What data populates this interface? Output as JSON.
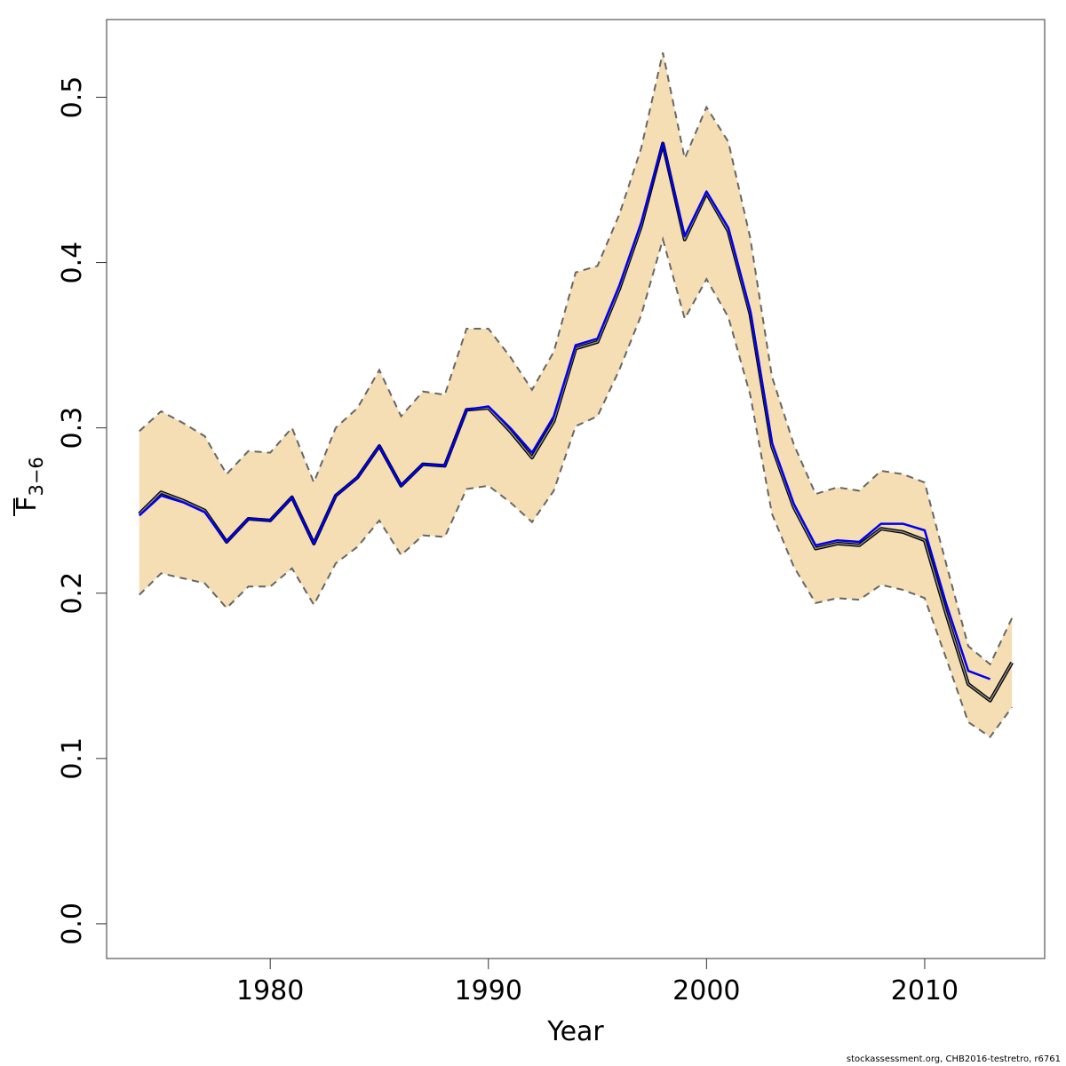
{
  "chart_data": {
    "type": "line",
    "xlabel": "Year",
    "ylabel_main": "F",
    "ylabel_sub": "3−6",
    "xlim": [
      1972.5,
      2015.5
    ],
    "ylim": [
      -0.021,
      0.547
    ],
    "xticks": [
      1980,
      1990,
      2000,
      2010
    ],
    "yticks": [
      0.0,
      0.1,
      0.2,
      0.3,
      0.4,
      0.5
    ],
    "ytick_labels": [
      "0.0",
      "0.1",
      "0.2",
      "0.3",
      "0.4",
      "0.5"
    ],
    "colors": {
      "band": "#f5deb3",
      "band_border": "#666666",
      "estimate": "#000000",
      "retro": "#0000ee"
    },
    "series": [
      {
        "role": "estimate",
        "x": [
          1974,
          1975,
          1976,
          1977,
          1978,
          1979,
          1980,
          1981,
          1982,
          1983,
          1984,
          1985,
          1986,
          1987,
          1988,
          1989,
          1990,
          1991,
          1992,
          1993,
          1994,
          1995,
          1996,
          1997,
          1998,
          1999,
          2000,
          2001,
          2002,
          2003,
          2004,
          2005,
          2006,
          2007,
          2008,
          2009,
          2010,
          2011,
          2012,
          2013,
          2014
        ],
        "y": [
          0.248,
          0.261,
          0.256,
          0.25,
          0.231,
          0.245,
          0.244,
          0.258,
          0.23,
          0.259,
          0.27,
          0.289,
          0.265,
          0.278,
          0.277,
          0.311,
          0.312,
          0.298,
          0.282,
          0.304,
          0.348,
          0.352,
          0.384,
          0.422,
          0.472,
          0.414,
          0.442,
          0.419,
          0.369,
          0.289,
          0.252,
          0.227,
          0.23,
          0.229,
          0.239,
          0.237,
          0.232,
          0.187,
          0.145,
          0.135,
          0.158
        ]
      },
      {
        "role": "retro",
        "x": [
          1974,
          1975,
          1976,
          1977,
          1978,
          1979,
          1980,
          1981,
          1982,
          1983,
          1984,
          1985,
          1986,
          1987,
          1988,
          1989,
          1990,
          1991,
          1992,
          1993,
          1994,
          1995,
          1996,
          1997,
          1998,
          1999,
          2000,
          2001,
          2002,
          2003,
          2004,
          2005,
          2006,
          2007,
          2008,
          2009,
          2010,
          2011,
          2012,
          2013
        ],
        "y": [
          0.247,
          0.259,
          0.255,
          0.249,
          0.231,
          0.245,
          0.244,
          0.258,
          0.23,
          0.259,
          0.27,
          0.289,
          0.265,
          0.278,
          0.277,
          0.311,
          0.313,
          0.3,
          0.285,
          0.307,
          0.35,
          0.354,
          0.386,
          0.424,
          0.472,
          0.416,
          0.443,
          0.421,
          0.371,
          0.291,
          0.254,
          0.229,
          0.232,
          0.231,
          0.242,
          0.242,
          0.238,
          0.193,
          0.153,
          0.148
        ]
      }
    ],
    "band": {
      "x": [
        1974,
        1975,
        1976,
        1977,
        1978,
        1979,
        1980,
        1981,
        1982,
        1983,
        1984,
        1985,
        1986,
        1987,
        1988,
        1989,
        1990,
        1991,
        1992,
        1993,
        1994,
        1995,
        1996,
        1997,
        1998,
        1999,
        2000,
        2001,
        2002,
        2003,
        2004,
        2005,
        2006,
        2007,
        2008,
        2009,
        2010,
        2011,
        2012,
        2013,
        2014
      ],
      "upper": [
        0.298,
        0.31,
        0.303,
        0.295,
        0.272,
        0.286,
        0.285,
        0.3,
        0.267,
        0.3,
        0.312,
        0.335,
        0.307,
        0.322,
        0.32,
        0.36,
        0.36,
        0.343,
        0.323,
        0.346,
        0.394,
        0.398,
        0.429,
        0.469,
        0.527,
        0.463,
        0.494,
        0.473,
        0.415,
        0.331,
        0.29,
        0.26,
        0.264,
        0.262,
        0.274,
        0.272,
        0.267,
        0.217,
        0.168,
        0.157,
        0.185
      ],
      "lower": [
        0.199,
        0.212,
        0.209,
        0.206,
        0.191,
        0.204,
        0.204,
        0.215,
        0.193,
        0.218,
        0.228,
        0.244,
        0.223,
        0.235,
        0.234,
        0.263,
        0.265,
        0.255,
        0.243,
        0.262,
        0.301,
        0.307,
        0.335,
        0.368,
        0.414,
        0.366,
        0.39,
        0.367,
        0.32,
        0.248,
        0.216,
        0.194,
        0.197,
        0.196,
        0.205,
        0.202,
        0.197,
        0.16,
        0.122,
        0.113,
        0.131
      ]
    }
  },
  "footer": "stockassessment.org, CHB2016-testretro, r6761"
}
